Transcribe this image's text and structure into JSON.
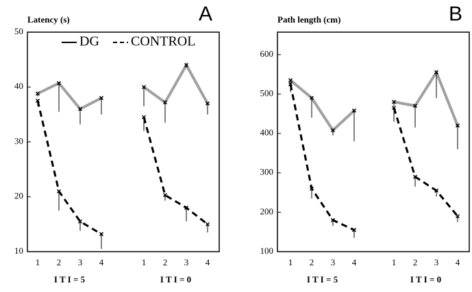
{
  "chart_data": [
    {
      "type": "line",
      "title": "Latency (s)",
      "panel_label": "A",
      "categories": [
        "1",
        "2",
        "3",
        "4",
        "1",
        "2",
        "3",
        "4"
      ],
      "groups": [
        "I T I = 5",
        "I T I = 0"
      ],
      "series": [
        {
          "name": "DG",
          "color": "#a0a0a0",
          "dashed": false,
          "values": [
            38.8,
            40.7,
            36,
            38,
            40,
            37.2,
            44,
            37
          ],
          "errors": [
            0.5,
            5.2,
            2.8,
            3,
            3.5,
            3.7,
            0.5,
            2
          ]
        },
        {
          "name": "CONTROL",
          "color": "#000000",
          "dashed": true,
          "values": [
            37.5,
            21,
            15.5,
            13.2,
            34.5,
            20.3,
            18,
            15
          ],
          "errors": [
            1,
            3.5,
            1.7,
            2.7,
            2.5,
            1,
            2.5,
            1.5
          ]
        }
      ],
      "ylim": [
        10,
        50
      ],
      "yticks": [
        10,
        20,
        30,
        40,
        50
      ],
      "legend": "top"
    },
    {
      "type": "line",
      "title": "Path length (cm)",
      "panel_label": "B",
      "categories": [
        "1",
        "2",
        "3",
        "4",
        "1",
        "2",
        "3",
        "4"
      ],
      "groups": [
        "I T I = 5",
        "I T I = 0"
      ],
      "series": [
        {
          "color": "#a0a0a0",
          "dashed": false,
          "values": [
            535,
            490,
            408,
            458,
            480,
            470,
            555,
            420
          ],
          "errors": [
            30,
            50,
            13,
            78,
            10,
            55,
            65,
            60
          ]
        },
        {
          "color": "#000000",
          "dashed": true,
          "values": [
            525,
            260,
            180,
            155,
            465,
            290,
            255,
            190
          ],
          "errors": [
            20,
            25,
            15,
            20,
            35,
            25,
            15,
            15
          ]
        }
      ],
      "ylim": [
        100,
        657
      ],
      "yticks": [
        100,
        200,
        300,
        400,
        500,
        600
      ]
    }
  ]
}
